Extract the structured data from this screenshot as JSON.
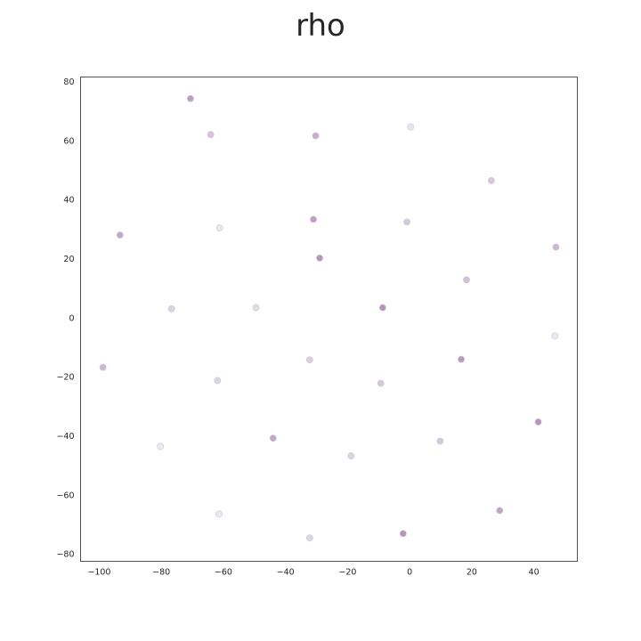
{
  "chart_data": {
    "type": "scatter",
    "title": "rho",
    "xlabel": "",
    "ylabel": "",
    "xlim": [
      -106,
      54
    ],
    "ylim": [
      -82.5,
      81.5
    ],
    "xticks": [
      -100,
      -80,
      -60,
      -40,
      -20,
      0,
      20,
      40
    ],
    "yticks": [
      -80,
      -60,
      -40,
      -20,
      0,
      20,
      40,
      60,
      80
    ],
    "xtick_labels": [
      "−100",
      "−80",
      "−60",
      "−40",
      "−20",
      "0",
      "20",
      "40"
    ],
    "ytick_labels": [
      "−80",
      "−60",
      "−40",
      "−20",
      "0",
      "20",
      "40",
      "60",
      "80"
    ],
    "grid": false,
    "colormap": {
      "low": "#eaeaf2",
      "high": "#b48cb4"
    },
    "points": [
      {
        "x": -70.6,
        "y": 74.2,
        "v": 0.8
      },
      {
        "x": -64.1,
        "y": 62.0,
        "v": 0.4
      },
      {
        "x": -30.3,
        "y": 61.6,
        "v": 0.65
      },
      {
        "x": 0.3,
        "y": 64.6,
        "v": 0.05
      },
      {
        "x": 26.3,
        "y": 46.4,
        "v": 0.35
      },
      {
        "x": -93.3,
        "y": 28.0,
        "v": 0.7
      },
      {
        "x": -61.2,
        "y": 30.4,
        "v": 0.02
      },
      {
        "x": -31.0,
        "y": 33.3,
        "v": 0.8
      },
      {
        "x": -0.9,
        "y": 32.4,
        "v": 0.35
      },
      {
        "x": 47.1,
        "y": 23.9,
        "v": 0.55
      },
      {
        "x": -29.0,
        "y": 20.2,
        "v": 0.9
      },
      {
        "x": 18.3,
        "y": 12.8,
        "v": 0.45
      },
      {
        "x": -76.7,
        "y": 3.0,
        "v": 0.25
      },
      {
        "x": -49.5,
        "y": 3.4,
        "v": 0.15
      },
      {
        "x": -8.7,
        "y": 3.4,
        "v": 0.9
      },
      {
        "x": 46.8,
        "y": -6.2,
        "v": 0.0
      },
      {
        "x": -98.8,
        "y": -16.8,
        "v": 0.55
      },
      {
        "x": -32.2,
        "y": -14.3,
        "v": 0.3
      },
      {
        "x": 16.6,
        "y": -14.1,
        "v": 0.85
      },
      {
        "x": -61.9,
        "y": -21.3,
        "v": 0.25
      },
      {
        "x": -9.3,
        "y": -22.2,
        "v": 0.35
      },
      {
        "x": 41.4,
        "y": -35.3,
        "v": 0.9
      },
      {
        "x": -44.0,
        "y": -40.8,
        "v": 0.7
      },
      {
        "x": 9.8,
        "y": -41.8,
        "v": 0.35
      },
      {
        "x": -80.3,
        "y": -43.6,
        "v": 0.0
      },
      {
        "x": -18.9,
        "y": -46.8,
        "v": 0.25
      },
      {
        "x": 29.0,
        "y": -65.3,
        "v": 0.75
      },
      {
        "x": -61.4,
        "y": -66.5,
        "v": 0.0
      },
      {
        "x": -32.2,
        "y": -74.6,
        "v": 0.2
      },
      {
        "x": -2.1,
        "y": -73.1,
        "v": 0.9
      }
    ]
  }
}
